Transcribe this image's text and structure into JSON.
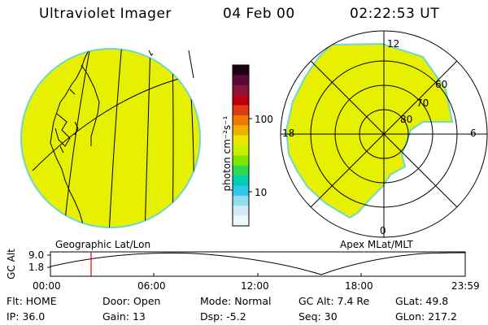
{
  "header": {
    "instrument": "Ultraviolet Imager",
    "date": "04 Feb 00",
    "time": "02:22:53 UT"
  },
  "geo_panel": {
    "caption": "Geographic Lat/Lon"
  },
  "polar_panel": {
    "caption": "Apex MLat/MLT",
    "mlt_labels": {
      "top": "12",
      "left": "18",
      "right": "6",
      "bottom": "0"
    },
    "lat_labels": [
      "60",
      "70",
      "80"
    ]
  },
  "colorbar": {
    "unit_label": "photon cm⁻²s⁻¹",
    "tick_labels": [
      "100",
      "10"
    ],
    "colors": [
      "#1a0010",
      "#5a0a3a",
      "#8c1540",
      "#c00010",
      "#e03a10",
      "#f07a00",
      "#f0b000",
      "#e8e800",
      "#c8f000",
      "#80e800",
      "#30d850",
      "#00d0b0",
      "#30c8e8",
      "#90dcef",
      "#d0ecf5",
      "#eef7fa"
    ]
  },
  "timeline": {
    "axis_title": "GC Alt",
    "y_ticks": [
      "9.0",
      "1.8"
    ],
    "x_ticks": [
      "00:00",
      "06:00",
      "12:00",
      "18:00",
      "23:59"
    ],
    "current_time_marker": "02:22:53"
  },
  "status": {
    "row1": [
      {
        "label": "Flt:",
        "value": "HOME"
      },
      {
        "label": "Door:",
        "value": "Open"
      },
      {
        "label": "Mode:",
        "value": "Normal"
      },
      {
        "label": "GC Alt:",
        "value": "7.4 Re"
      },
      {
        "label": "GLat:",
        "value": "49.8"
      }
    ],
    "row2": [
      {
        "label": "IP:",
        "value": "36.0"
      },
      {
        "label": "Gain:",
        "value": "13"
      },
      {
        "label": "Dsp:",
        "value": "-5.2"
      },
      {
        "label": "Seq:",
        "value": "30"
      },
      {
        "label": "GLon:",
        "value": "217.2"
      }
    ]
  },
  "colors": {
    "disk_fill": "#e6f000",
    "disk_edge": "#6fd6d2",
    "cursor": "#e00000"
  }
}
